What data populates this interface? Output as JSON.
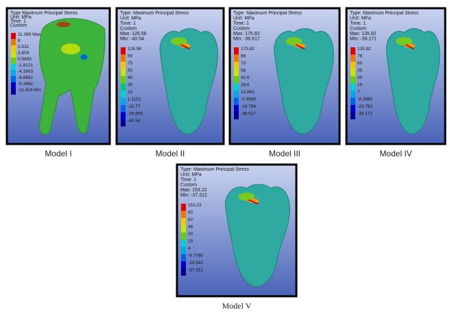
{
  "panels": [
    {
      "header": [
        "Type Maximum Principal Stress",
        "Unit: MPa",
        "Time: 1",
        "Custom"
      ],
      "legend": [
        "11.369 Max",
        "8",
        "5.532",
        "3.809",
        "0.5659",
        "-1.9121",
        "-4.3903",
        "-6.8682",
        "-9.3462",
        "-11.824 Min"
      ],
      "caption": "Model I"
    },
    {
      "header": [
        "Type: Maximum Principal Stress",
        "Unit: MPa",
        "Time: 1",
        "Custom",
        "Max: 126.58",
        "Min: -40.54"
      ],
      "legend": [
        "126.58",
        "90",
        "75",
        "60",
        "45",
        "30",
        "15",
        "1.1151",
        "-12.77",
        "-26.655",
        "-40.54"
      ],
      "caption": "Model II"
    },
    {
      "header": [
        "Type: Maximum Principal Stress",
        "Unit: MPa",
        "Time: 1",
        "Custom",
        "Max: 175.82",
        "Min: -36.617"
      ],
      "legend": [
        "175.82",
        "88",
        "73",
        "58",
        "43.5",
        "28.6",
        "13.883",
        "-2.9583",
        "-19.784",
        "-36.617"
      ],
      "caption": "Model III"
    },
    {
      "header": [
        "Type: Maximum Principal Stress",
        "Unit: MPa",
        "Time: 1",
        "Custom",
        "Max: 135.92",
        "Min: -39.171"
      ],
      "legend": [
        "135.92",
        "76",
        "60",
        "45",
        "30",
        "15",
        "7",
        "-8.3984",
        "-23.781",
        "-39.171"
      ],
      "caption": "Model IV"
    },
    {
      "header": [
        "Type: Maximum Principal Stress",
        "Unit: MPa",
        "Time: 1",
        "Custom",
        "Max: 153.22",
        "Min: -37.312"
      ],
      "legend": [
        "153.22",
        "80",
        "62",
        "46",
        "30",
        "15",
        "4",
        "-9.7785",
        "-23.541",
        "-37.312"
      ],
      "caption": "Model V"
    }
  ]
}
